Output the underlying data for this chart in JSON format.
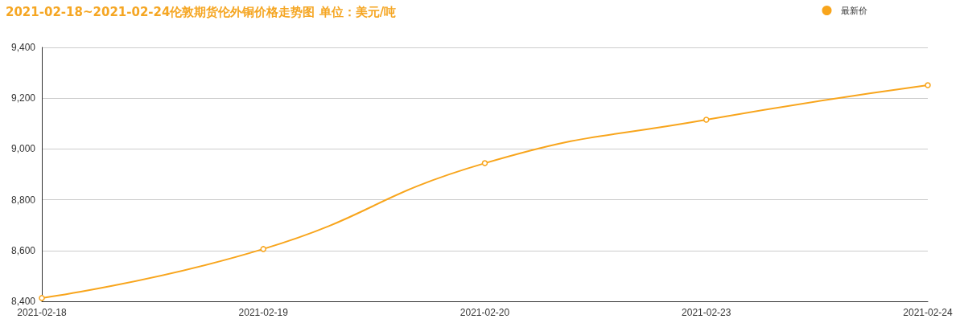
{
  "chart_data": {
    "type": "line",
    "title": "2021-02-18~2021-02-24伦敦期货伦外铜价格走势图 单位：美元/吨",
    "categories": [
      "2021-02-18",
      "2021-02-19",
      "2021-02-20",
      "2021-02-23",
      "2021-02-24"
    ],
    "series": [
      {
        "name": "最新价",
        "color": "#f8a51c",
        "values": [
          8413,
          8606,
          8944,
          9115,
          9251
        ]
      }
    ],
    "ylim": [
      8400,
      9400
    ],
    "yticks": [
      {
        "value": 8400,
        "label": "8,400"
      },
      {
        "value": 8600,
        "label": "8,600"
      },
      {
        "value": 8800,
        "label": "8,800"
      },
      {
        "value": 9000,
        "label": "9,000"
      },
      {
        "value": 9200,
        "label": "9,200"
      },
      {
        "value": 9400,
        "label": "9,400"
      }
    ],
    "grid": "y",
    "legend": "top right",
    "marker": "circle",
    "line_style": "solid"
  }
}
